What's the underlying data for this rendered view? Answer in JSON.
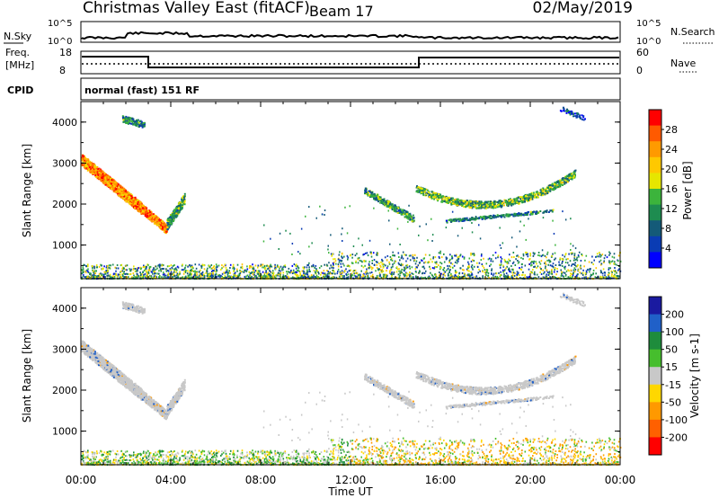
{
  "header": {
    "station": "Christmas Valley East (fitACF)",
    "beam": "Beam 17",
    "date": "02/May/2019"
  },
  "noise_panel": {
    "left_label": "N.Sky",
    "right_label": "N.Search",
    "left_ticks": [
      "10^5",
      "10^0"
    ],
    "right_ticks": [
      "10^5",
      "10^0"
    ]
  },
  "freq_panel": {
    "left_label_1": "Freq.",
    "left_label_2": "[MHz]",
    "right_label": "Nave",
    "left_ticks": [
      "18",
      "8"
    ],
    "right_ticks": [
      "60",
      "0"
    ]
  },
  "cpid": {
    "label": "CPID",
    "value": "normal (fast) 151 RF"
  },
  "chart_data": [
    {
      "type": "heatmap",
      "name": "power",
      "ylabel": "Slant Range [km]",
      "xlabel": "Time UT",
      "ylim": [
        180,
        4500
      ],
      "y_ticks": [
        "4000",
        "3000",
        "2000",
        "1000"
      ],
      "x_ticks": [
        "00:00",
        "04:00",
        "08:00",
        "12:00",
        "16:00",
        "20:00",
        "00:00"
      ],
      "colorbar_label": "Power [dB]",
      "colorbar_ticks": [
        "28",
        "24",
        "20",
        "16",
        "12",
        "8",
        "4"
      ],
      "colorbar_colors": [
        "#ff0000",
        "#ff5a00",
        "#ff9a00",
        "#ffc800",
        "#e6e600",
        "#3cb43c",
        "#1e8c50",
        "#145a78",
        "#0a3cb4",
        "#0000ff"
      ]
    },
    {
      "type": "heatmap",
      "name": "velocity",
      "ylabel": "Slant Range [km]",
      "xlabel": "Time UT",
      "ylim": [
        180,
        4500
      ],
      "y_ticks": [
        "4000",
        "3000",
        "2000",
        "1000"
      ],
      "x_ticks": [
        "00:00",
        "04:00",
        "08:00",
        "12:00",
        "16:00",
        "20:00",
        "00:00"
      ],
      "colorbar_label": "Velocity [m s-1]",
      "colorbar_ticks": [
        "200",
        "100",
        "50",
        "15",
        "-15",
        "-50",
        "-100",
        "-200"
      ],
      "colorbar_colors": [
        "#1a1aa0",
        "#2060c8",
        "#1e8c3c",
        "#46be2d",
        "#c8c8c8",
        "#ffd700",
        "#ff9900",
        "#ff6000",
        "#ff0000"
      ]
    }
  ]
}
